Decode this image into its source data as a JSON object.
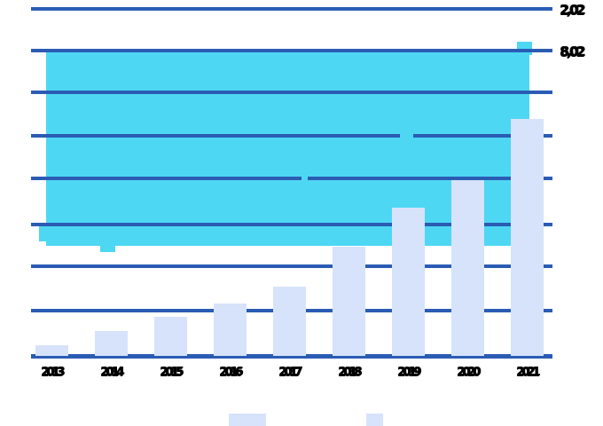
{
  "chart_data": {
    "type": "bar",
    "title": "",
    "xlabel": "",
    "ylabel": "",
    "categories": [
      "2013",
      "2014",
      "2015",
      "2016",
      "2017",
      "2018",
      "2019",
      "2020",
      "2021"
    ],
    "values": [
      0.25,
      0.57,
      0.9,
      1.2,
      1.6,
      2.5,
      3.4,
      4.05,
      5.45
    ],
    "ylim": [
      0,
      8
    ],
    "grid": "horizontal",
    "gridline_count": 9,
    "legend_position": "bottom",
    "right_axis_labels": [
      "2,02",
      "8,02"
    ],
    "colors": {
      "bar": "#d6e3fa",
      "overlay": "#4ed7f3",
      "gridline": "#2a5cb4",
      "gridline_on_overlay": "#2e66c4",
      "label_text": "#000000"
    }
  }
}
